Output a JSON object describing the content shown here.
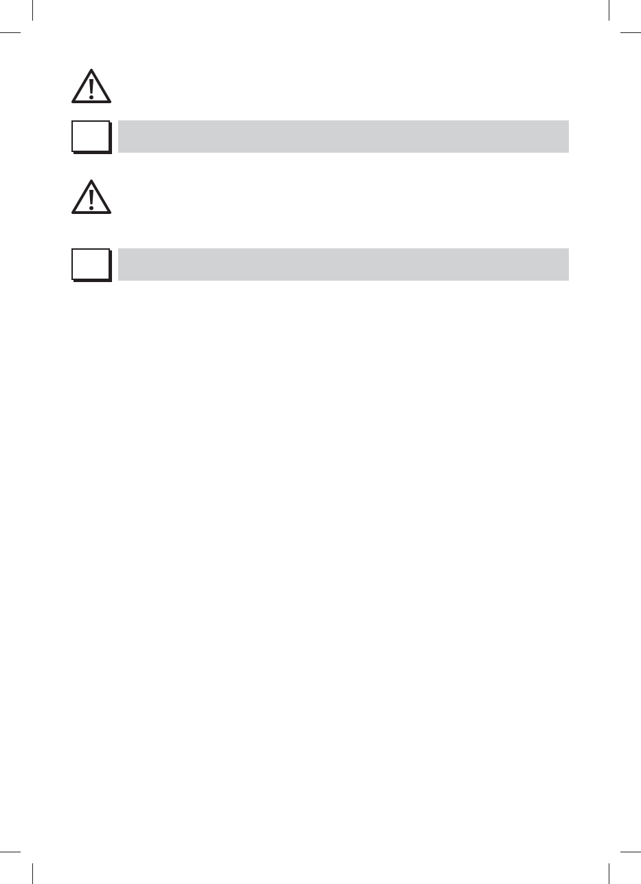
{
  "colors": {
    "bar": "#d1d2d4",
    "ink": "#231f20"
  },
  "sections": [
    {
      "icon": "warning-triangle-icon",
      "box": "checkbox-square"
    },
    {
      "icon": "warning-triangle-icon",
      "box": "checkbox-square"
    }
  ]
}
